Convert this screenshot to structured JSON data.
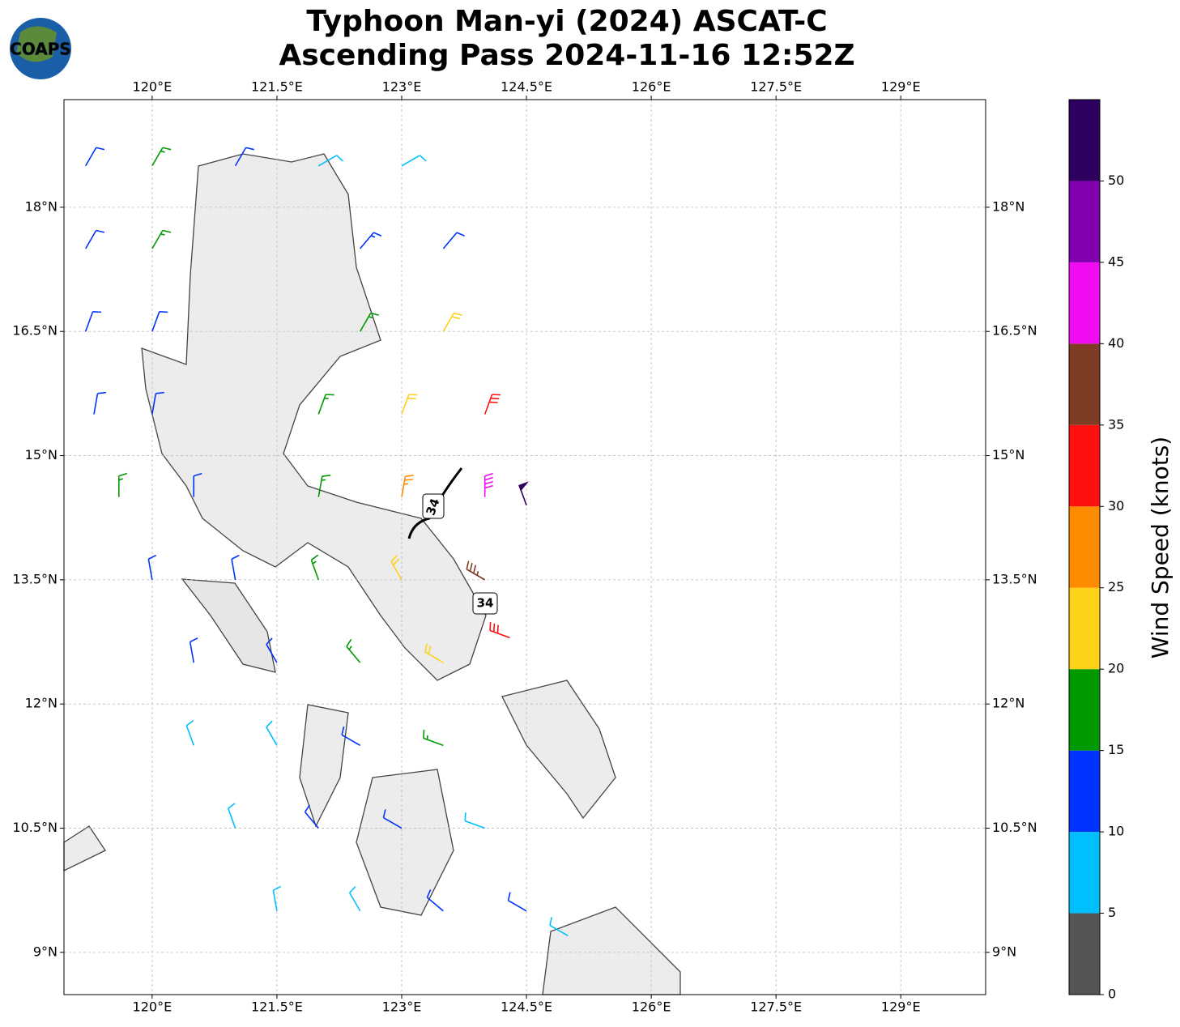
{
  "header": {
    "title_line1": "Typhoon Man-yi (2024) ASCAT-C",
    "title_line2": "Ascending Pass 2024-11-16 12:52Z",
    "logo": "COAPS"
  },
  "map": {
    "lonlim": [
      118.94,
      130.02
    ],
    "latlim": [
      8.49,
      19.3
    ],
    "lonticks": [
      {
        "value": 120,
        "label": "120°E"
      },
      {
        "value": 121.5,
        "label": "121.5°E"
      },
      {
        "value": 123,
        "label": "123°E"
      },
      {
        "value": 124.5,
        "label": "124.5°E"
      },
      {
        "value": 126,
        "label": "126°E"
      },
      {
        "value": 127.5,
        "label": "127.5°E"
      },
      {
        "value": 129,
        "label": "129°E"
      }
    ],
    "latticks": [
      {
        "value": 9,
        "label": "9°N"
      },
      {
        "value": 10.5,
        "label": "10.5°N"
      },
      {
        "value": 12,
        "label": "12°N"
      },
      {
        "value": 13.5,
        "label": "13.5°N"
      },
      {
        "value": 15,
        "label": "15°N"
      },
      {
        "value": 16.5,
        "label": "16.5°N"
      },
      {
        "value": 18,
        "label": "18°N"
      }
    ],
    "grid": true,
    "annotations": [
      "34",
      "34"
    ],
    "barbs": [
      {
        "lon": 119.2,
        "lat": 18.5,
        "speed": 12,
        "dir": 30
      },
      {
        "lon": 120,
        "lat": 18.5,
        "speed": 17,
        "dir": 30
      },
      {
        "lon": 121,
        "lat": 18.5,
        "speed": 12,
        "dir": 30
      },
      {
        "lon": 122,
        "lat": 18.5,
        "speed": 8,
        "dir": 60
      },
      {
        "lon": 123,
        "lat": 18.5,
        "speed": 8,
        "dir": 60
      },
      {
        "lon": 119.2,
        "lat": 17.5,
        "speed": 12,
        "dir": 30
      },
      {
        "lon": 120,
        "lat": 17.5,
        "speed": 17,
        "dir": 30
      },
      {
        "lon": 122.5,
        "lat": 17.5,
        "speed": 14,
        "dir": 40
      },
      {
        "lon": 123.5,
        "lat": 17.5,
        "speed": 12,
        "dir": 40
      },
      {
        "lon": 119.2,
        "lat": 16.5,
        "speed": 12,
        "dir": 20
      },
      {
        "lon": 120,
        "lat": 16.5,
        "speed": 12,
        "dir": 20
      },
      {
        "lon": 122.5,
        "lat": 16.5,
        "speed": 17,
        "dir": 30
      },
      {
        "lon": 123.5,
        "lat": 16.5,
        "speed": 22,
        "dir": 30
      },
      {
        "lon": 119.3,
        "lat": 15.5,
        "speed": 12,
        "dir": 10
      },
      {
        "lon": 120,
        "lat": 15.5,
        "speed": 12,
        "dir": 10
      },
      {
        "lon": 122,
        "lat": 15.5,
        "speed": 17,
        "dir": 20
      },
      {
        "lon": 123,
        "lat": 15.5,
        "speed": 22,
        "dir": 20
      },
      {
        "lon": 124,
        "lat": 15.5,
        "speed": 30,
        "dir": 20
      },
      {
        "lon": 119.6,
        "lat": 14.5,
        "speed": 17,
        "dir": 0
      },
      {
        "lon": 120.5,
        "lat": 14.5,
        "speed": 12,
        "dir": 0
      },
      {
        "lon": 122,
        "lat": 14.5,
        "speed": 17,
        "dir": 10
      },
      {
        "lon": 123,
        "lat": 14.5,
        "speed": 27,
        "dir": 10
      },
      {
        "lon": 124,
        "lat": 14.5,
        "speed": 42,
        "dir": 0
      },
      {
        "lon": 124.5,
        "lat": 14.4,
        "speed": 52,
        "dir": 340
      },
      {
        "lon": 120,
        "lat": 13.5,
        "speed": 12,
        "dir": 350
      },
      {
        "lon": 121,
        "lat": 13.5,
        "speed": 12,
        "dir": 350
      },
      {
        "lon": 122,
        "lat": 13.5,
        "speed": 17,
        "dir": 340
      },
      {
        "lon": 123,
        "lat": 13.5,
        "speed": 22,
        "dir": 330
      },
      {
        "lon": 124,
        "lat": 13.5,
        "speed": 37,
        "dir": 300
      },
      {
        "lon": 120.5,
        "lat": 12.5,
        "speed": 12,
        "dir": 350
      },
      {
        "lon": 121.5,
        "lat": 12.5,
        "speed": 12,
        "dir": 330
      },
      {
        "lon": 122.5,
        "lat": 12.5,
        "speed": 17,
        "dir": 320
      },
      {
        "lon": 123.5,
        "lat": 12.5,
        "speed": 22,
        "dir": 300
      },
      {
        "lon": 124.3,
        "lat": 12.8,
        "speed": 32,
        "dir": 290
      },
      {
        "lon": 120.5,
        "lat": 11.5,
        "speed": 8,
        "dir": 340
      },
      {
        "lon": 121.5,
        "lat": 11.5,
        "speed": 8,
        "dir": 330
      },
      {
        "lon": 122.5,
        "lat": 11.5,
        "speed": 12,
        "dir": 300
      },
      {
        "lon": 123.5,
        "lat": 11.5,
        "speed": 17,
        "dir": 290
      },
      {
        "lon": 121,
        "lat": 10.5,
        "speed": 8,
        "dir": 340
      },
      {
        "lon": 122,
        "lat": 10.5,
        "speed": 12,
        "dir": 320
      },
      {
        "lon": 123,
        "lat": 10.5,
        "speed": 12,
        "dir": 300
      },
      {
        "lon": 124,
        "lat": 10.5,
        "speed": 8,
        "dir": 290
      },
      {
        "lon": 121.5,
        "lat": 9.5,
        "speed": 8,
        "dir": 350
      },
      {
        "lon": 122.5,
        "lat": 9.5,
        "speed": 8,
        "dir": 330
      },
      {
        "lon": 123.5,
        "lat": 9.5,
        "speed": 12,
        "dir": 310
      },
      {
        "lon": 124.5,
        "lat": 9.5,
        "speed": 12,
        "dir": 300
      },
      {
        "lon": 125,
        "lat": 9.2,
        "speed": 8,
        "dir": 300
      }
    ]
  },
  "colorbar": {
    "label": "Wind Speed (knots)",
    "bounds": [
      0,
      5,
      10,
      15,
      20,
      25,
      30,
      35,
      40,
      45,
      50,
      55
    ],
    "colors": [
      "#555555",
      "#00bfff",
      "#0033ff",
      "#009900",
      "#ffd21a",
      "#ff8c00",
      "#ff1010",
      "#7f3c24",
      "#f20cf2",
      "#8000b0",
      "#2e0060"
    ],
    "ticks": [
      0,
      5,
      10,
      15,
      20,
      25,
      30,
      35,
      40,
      45,
      50
    ]
  }
}
